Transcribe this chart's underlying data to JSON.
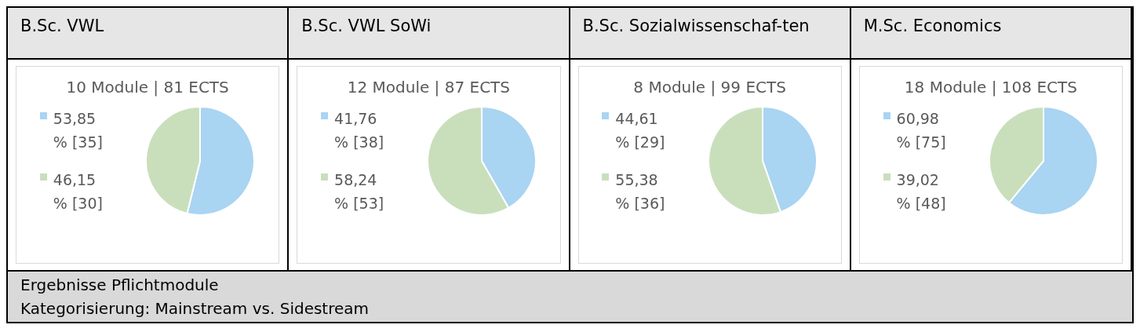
{
  "chart_data": [
    {
      "type": "pie",
      "title": "B.Sc. VWL",
      "subtitle": "10 Module | 81 ECTS",
      "categories": [
        "53,85 % [35]",
        "46,15 % [30]"
      ],
      "values": [
        35,
        30
      ],
      "colors": [
        "#a9d4f2",
        "#c9dfbc"
      ],
      "legend": "left"
    },
    {
      "type": "pie",
      "title": "B.Sc. VWL SoWi",
      "subtitle": "12 Module | 87 ECTS",
      "categories": [
        "41,76 % [38]",
        "58,24 % [53]"
      ],
      "values": [
        38,
        53
      ],
      "colors": [
        "#a9d4f2",
        "#c9dfbc"
      ],
      "legend": "left"
    },
    {
      "type": "pie",
      "title": "B.Sc. Sozialwissenschaf-ten",
      "subtitle": "8 Module | 99 ECTS",
      "categories": [
        "44,61 % [29]",
        "55,38 % [36]"
      ],
      "values": [
        29,
        36
      ],
      "colors": [
        "#a9d4f2",
        "#c9dfbc"
      ],
      "legend": "left"
    },
    {
      "type": "pie",
      "title": "M.Sc. Economics",
      "subtitle": "18 Module | 108 ECTS",
      "categories": [
        "60,98 % [75]",
        "39,02 % [48]"
      ],
      "values": [
        75,
        48
      ],
      "colors": [
        "#a9d4f2",
        "#c9dfbc"
      ],
      "legend": "left"
    },
    {
      "type": "other",
      "annotations": [
        "Ergebnisse Pflichtmodule",
        "Kategorisierung: Mainstream vs. Sidestream"
      ]
    }
  ]
}
